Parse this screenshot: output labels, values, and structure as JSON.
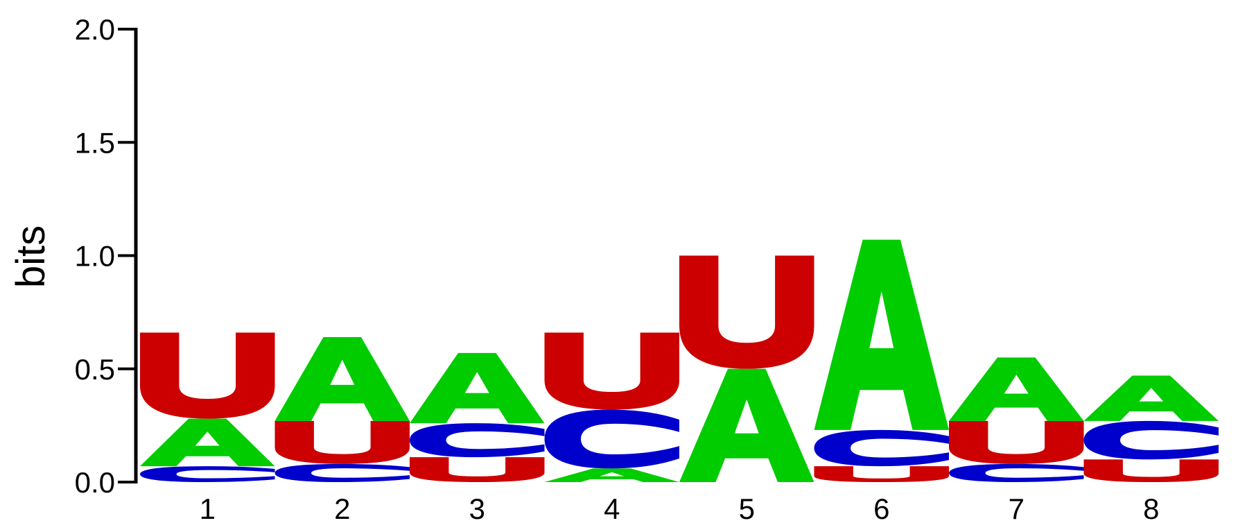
{
  "chart_data": {
    "type": "sequence-logo",
    "title": "",
    "xlabel": "",
    "ylabel": "bits",
    "ylim": [
      0,
      2.0
    ],
    "y_ticks": [
      "0.0",
      "0.5",
      "1.0",
      "1.5",
      "2.0"
    ],
    "y_tick_values": [
      0,
      0.5,
      1.0,
      1.5,
      2.0
    ],
    "grid": false,
    "colors": {
      "A": "#00cc00",
      "C": "#0000cc",
      "G": "#ffb300",
      "U": "#cc0000"
    },
    "categories": [
      "1",
      "2",
      "3",
      "4",
      "5",
      "6",
      "7",
      "8"
    ],
    "positions": [
      {
        "label": "1",
        "stack": [
          {
            "letter": "C",
            "value": 0.07
          },
          {
            "letter": "A",
            "value": 0.21
          },
          {
            "letter": "U",
            "value": 0.38
          }
        ]
      },
      {
        "label": "2",
        "stack": [
          {
            "letter": "C",
            "value": 0.08
          },
          {
            "letter": "U",
            "value": 0.19
          },
          {
            "letter": "A",
            "value": 0.37
          }
        ]
      },
      {
        "label": "3",
        "stack": [
          {
            "letter": "U",
            "value": 0.11
          },
          {
            "letter": "C",
            "value": 0.15
          },
          {
            "letter": "A",
            "value": 0.31
          }
        ]
      },
      {
        "label": "4",
        "stack": [
          {
            "letter": "A",
            "value": 0.06
          },
          {
            "letter": "C",
            "value": 0.26
          },
          {
            "letter": "U",
            "value": 0.34
          }
        ]
      },
      {
        "label": "5",
        "stack": [
          {
            "letter": "A",
            "value": 0.5
          },
          {
            "letter": "U",
            "value": 0.5
          }
        ]
      },
      {
        "label": "6",
        "stack": [
          {
            "letter": "U",
            "value": 0.07
          },
          {
            "letter": "C",
            "value": 0.16
          },
          {
            "letter": "A",
            "value": 0.84
          }
        ]
      },
      {
        "label": "7",
        "stack": [
          {
            "letter": "C",
            "value": 0.08
          },
          {
            "letter": "U",
            "value": 0.19
          },
          {
            "letter": "A",
            "value": 0.28
          }
        ]
      },
      {
        "label": "8",
        "stack": [
          {
            "letter": "U",
            "value": 0.1
          },
          {
            "letter": "C",
            "value": 0.17
          },
          {
            "letter": "A",
            "value": 0.2
          }
        ]
      }
    ]
  }
}
